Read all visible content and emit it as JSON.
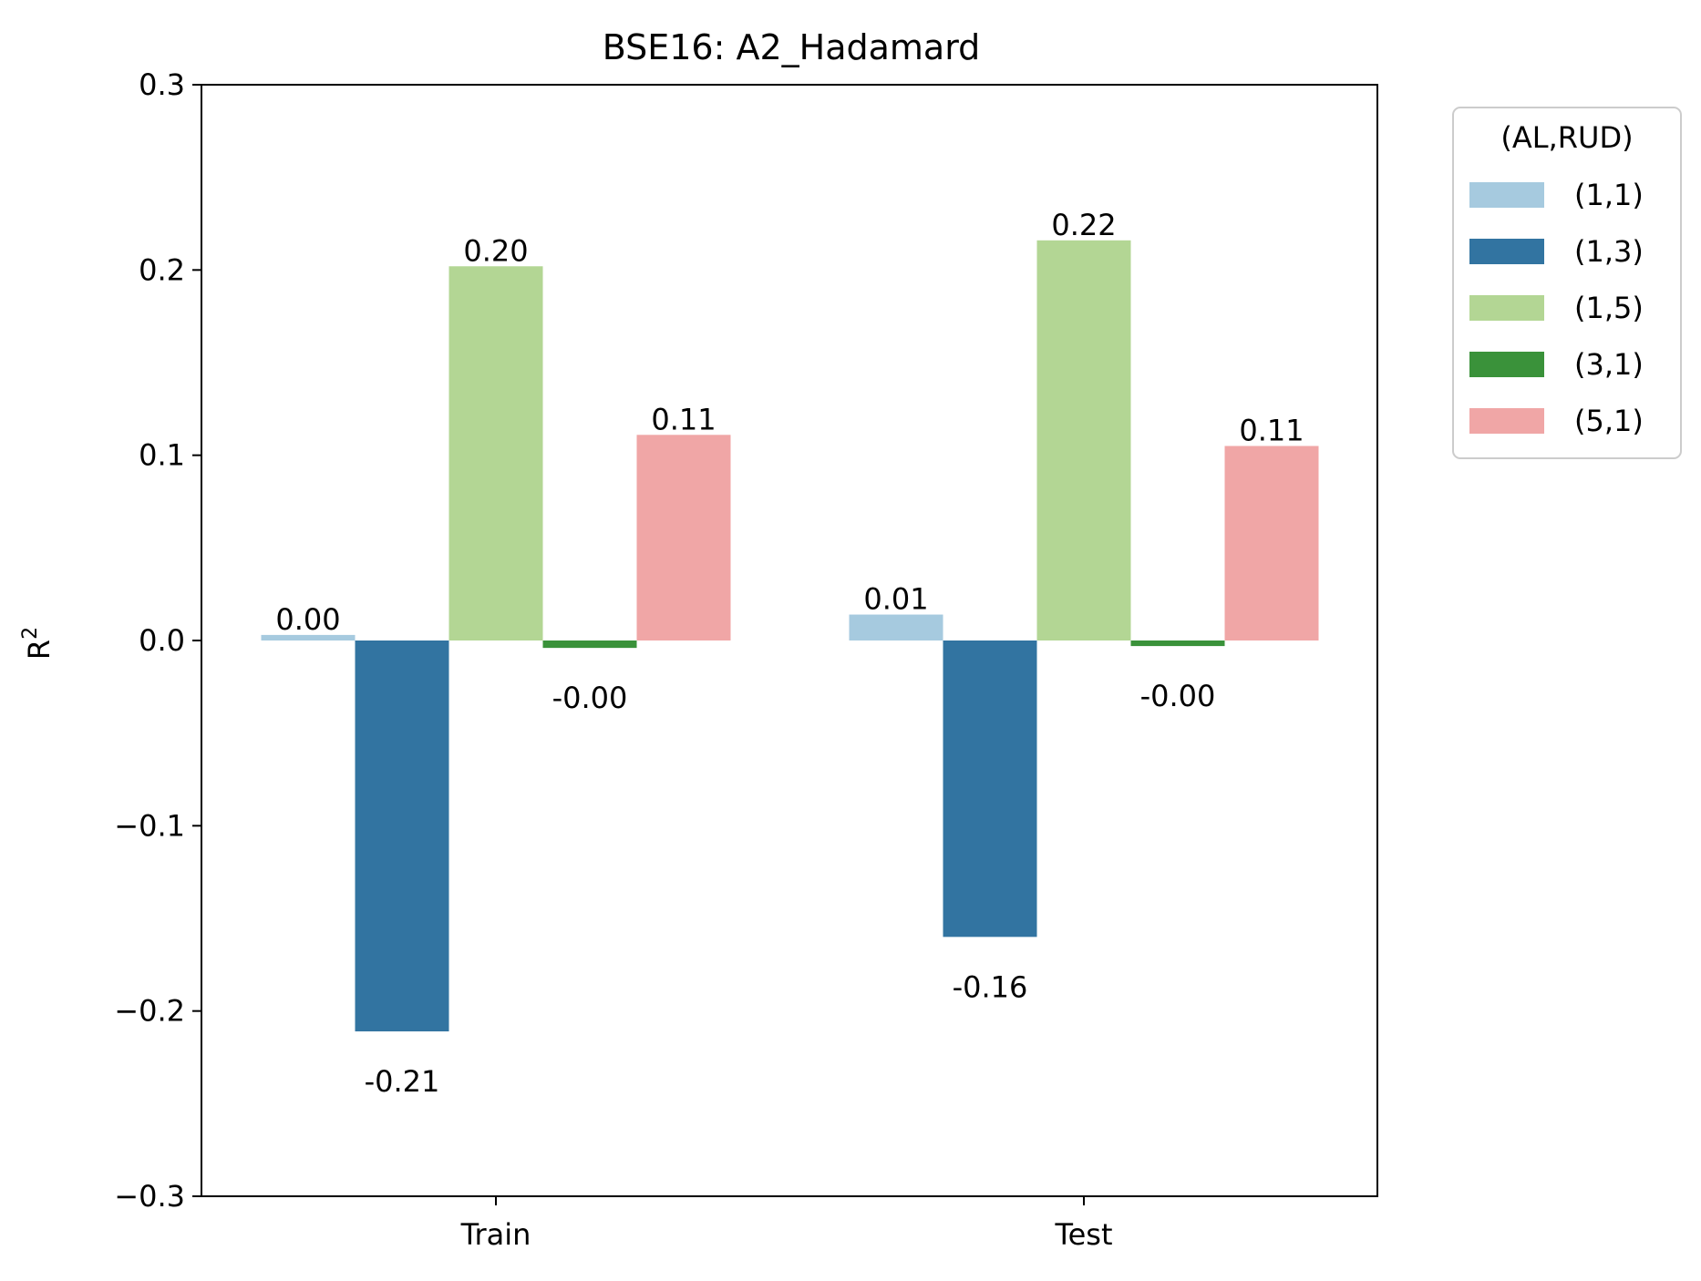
{
  "chart_data": {
    "type": "bar",
    "title": "BSE16: A2_Hadamard",
    "xlabel": "",
    "ylabel": "R",
    "ylabel_sup": "2",
    "categories": [
      "Train",
      "Test"
    ],
    "ylim": [
      -0.3,
      0.3
    ],
    "yticks": [
      0.3,
      0.2,
      0.1,
      0.0,
      -0.1,
      -0.2,
      -0.3
    ],
    "ytick_labels": [
      "0.3",
      "0.2",
      "0.1",
      "0.0",
      "−0.1",
      "−0.2",
      "−0.3"
    ],
    "grid": false,
    "legend": {
      "title": "(AL,RUD)",
      "placement": "outside-top-right"
    },
    "series": [
      {
        "name": "(1,1)",
        "color": "#a6cadf",
        "values": [
          0.003,
          0.014
        ],
        "labels": [
          "0.00",
          "0.01"
        ]
      },
      {
        "name": "(1,3)",
        "color": "#3274a1",
        "values": [
          -0.211,
          -0.16
        ],
        "labels": [
          "-0.21",
          "-0.16"
        ]
      },
      {
        "name": "(1,5)",
        "color": "#b3d694",
        "values": [
          0.202,
          0.216
        ],
        "labels": [
          "0.20",
          "0.22"
        ]
      },
      {
        "name": "(3,1)",
        "color": "#3a923a",
        "values": [
          -0.004,
          -0.003
        ],
        "labels": [
          "-0.00",
          "-0.00"
        ]
      },
      {
        "name": "(5,1)",
        "color": "#f0a6a6",
        "values": [
          0.111,
          0.105
        ],
        "labels": [
          "0.11",
          "0.11"
        ]
      }
    ]
  }
}
